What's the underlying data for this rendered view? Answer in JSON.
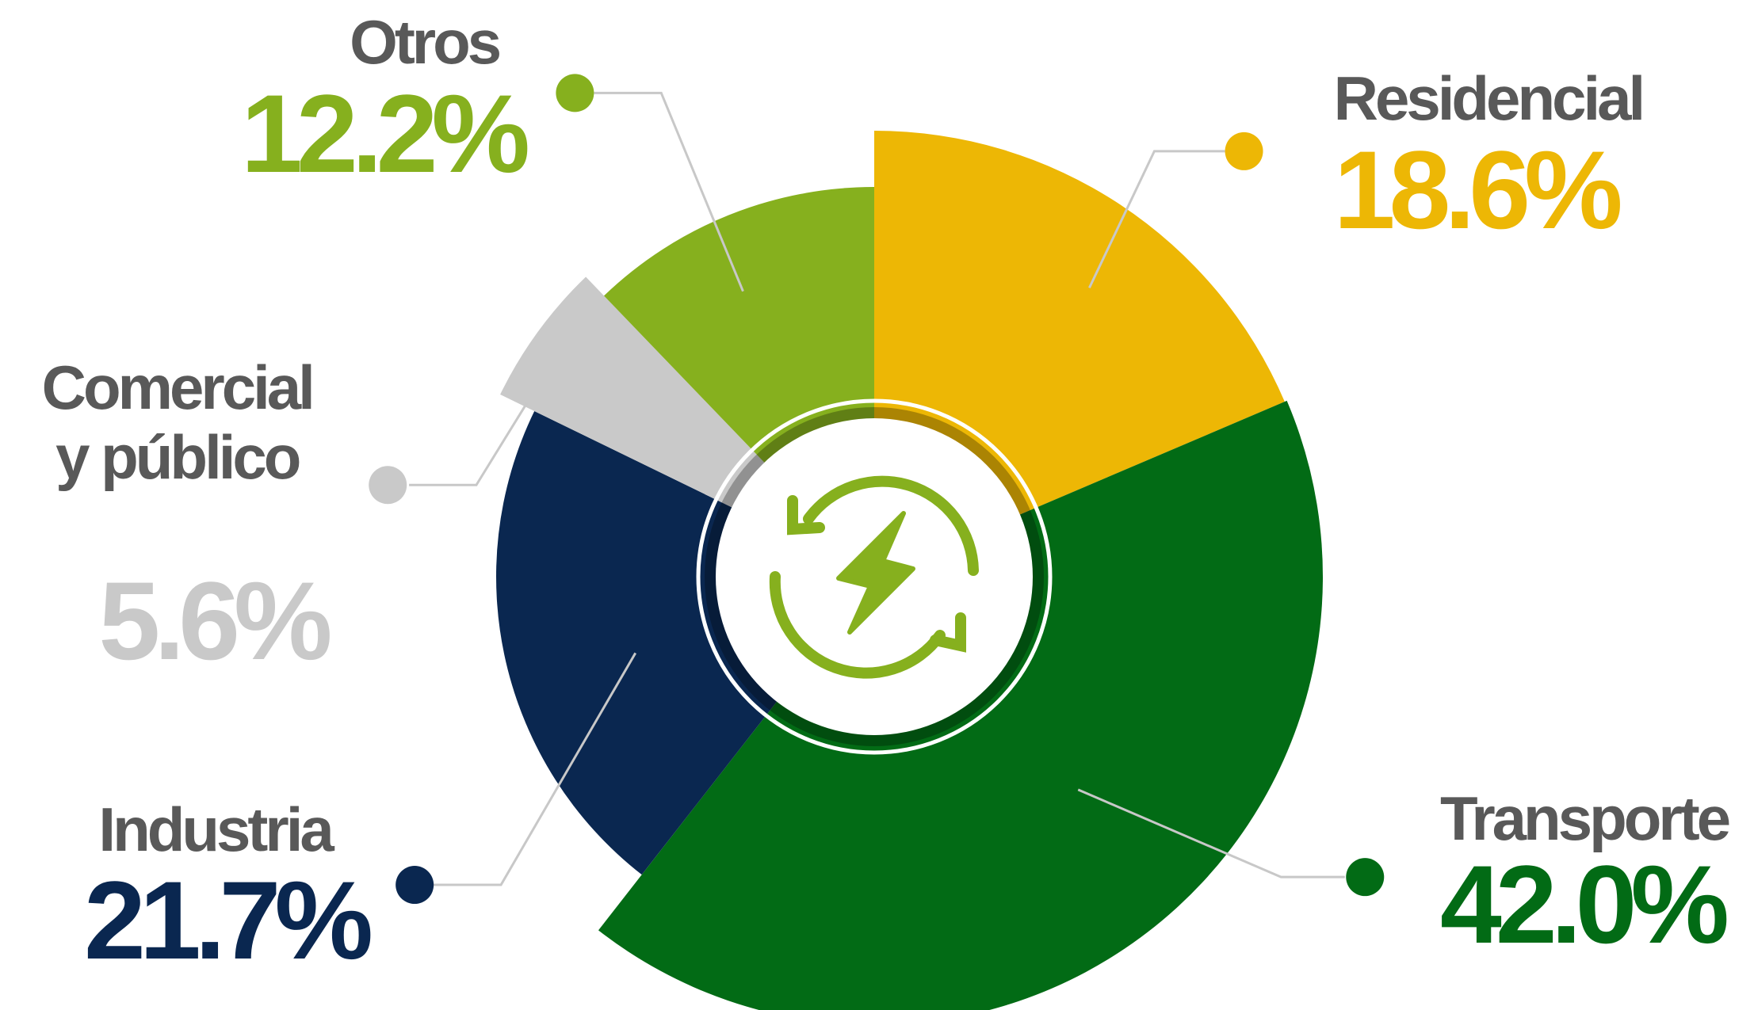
{
  "chart_data": {
    "type": "pie",
    "categories": [
      "Residencial",
      "Transporte",
      "Industria",
      "Comercial y público",
      "Otros"
    ],
    "values": [
      18.6,
      42.0,
      21.7,
      5.6,
      12.2
    ],
    "value_labels": [
      "18.6%",
      "42.0%",
      "21.7%",
      "5.6%",
      "12.2%"
    ],
    "colors": [
      "#EDB705",
      "#026B15",
      "#0A2750",
      "#C9C9C9",
      "#86B01E"
    ]
  }
}
